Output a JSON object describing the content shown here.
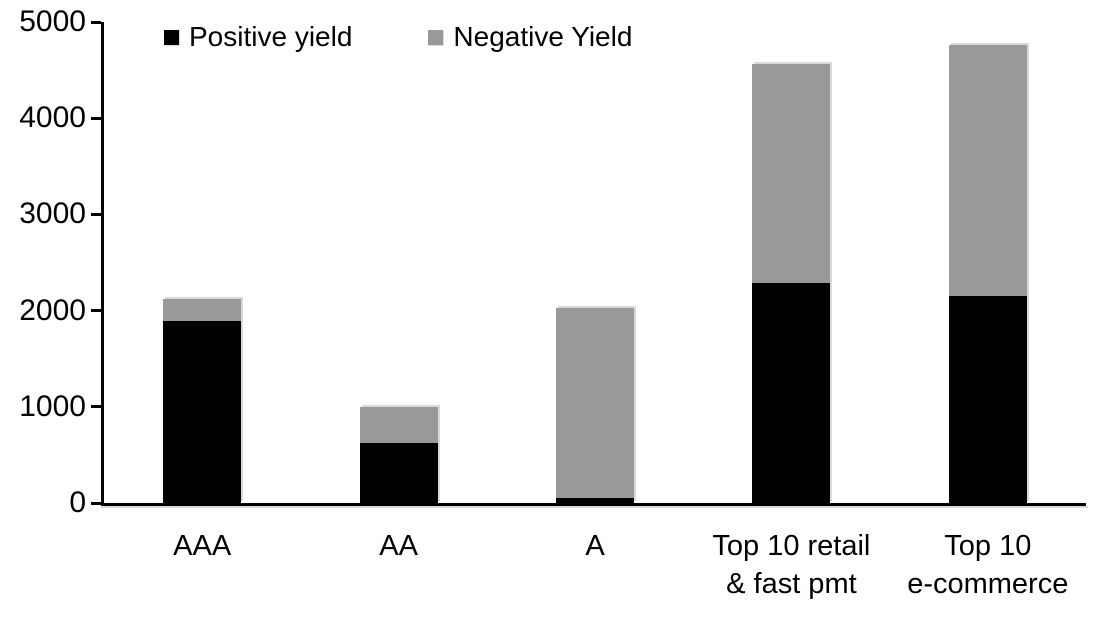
{
  "chart_data": {
    "type": "bar",
    "stacked": true,
    "title": "",
    "xlabel": "",
    "ylabel": "",
    "categories": [
      "AAA",
      "AA",
      "A",
      "Top 10 retail & fast pmt",
      "Top 10 e-commerce"
    ],
    "category_lines": [
      [
        "AAA"
      ],
      [
        "AA"
      ],
      [
        "A"
      ],
      [
        "Top 10 retail",
        "& fast pmt"
      ],
      [
        "Top 10",
        "e-commerce"
      ]
    ],
    "series": [
      {
        "name": "Positive yield",
        "color": "#000000",
        "values": [
          1890,
          620,
          50,
          2290,
          2150
        ]
      },
      {
        "name": "Negative Yield",
        "color": "#999999",
        "values": [
          230,
          380,
          1980,
          2270,
          2610
        ]
      }
    ],
    "totals": [
      2120,
      1000,
      2030,
      4560,
      4760
    ],
    "ylim": [
      0,
      5000
    ],
    "yticks": [
      0,
      1000,
      2000,
      3000,
      4000,
      5000
    ],
    "ytick_labels": [
      "0",
      "1000",
      "2000",
      "3000",
      "4000",
      "5000"
    ],
    "grid": false,
    "legend_position": "top-left",
    "background_color": "#ffffff",
    "axis_color": "#000000",
    "bar_edge_highlight_color": "#d9d9d9"
  }
}
